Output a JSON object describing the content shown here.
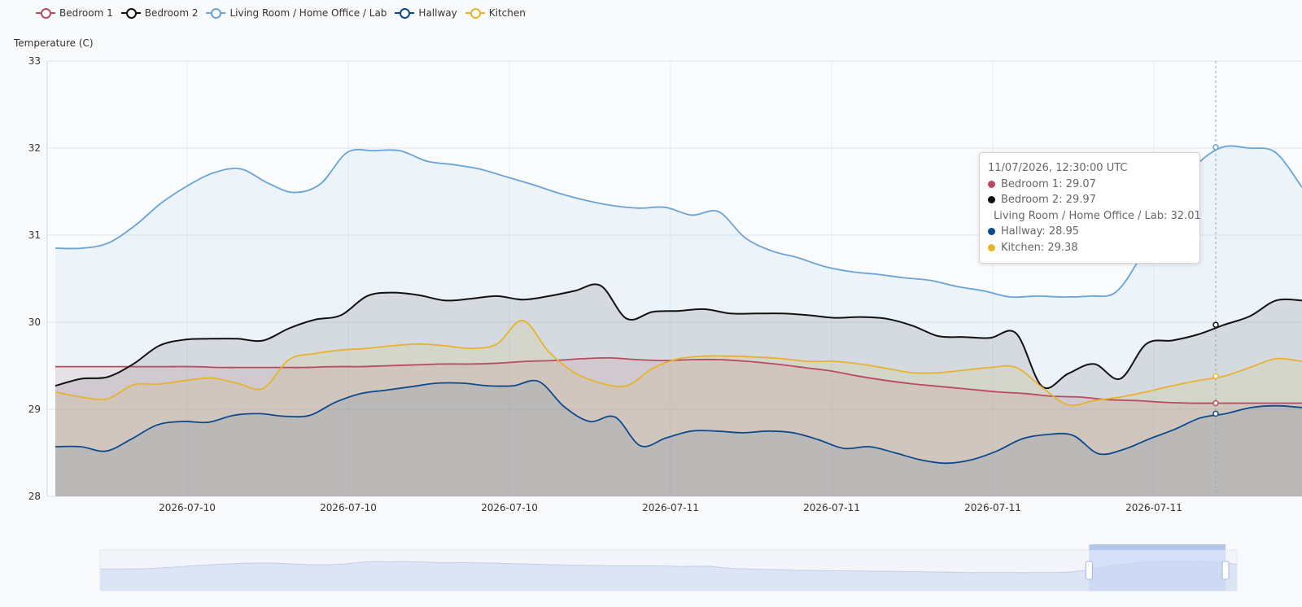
{
  "chart_data": {
    "type": "area",
    "ylabel": "Temperature (C)",
    "ylim": [
      28,
      33
    ],
    "y_ticks": [
      28,
      29,
      30,
      31,
      32,
      33
    ],
    "x_tick_labels": [
      "2026-07-10",
      "2026-07-10",
      "2026-07-10",
      "2026-07-11",
      "2026-07-11",
      "2026-07-11",
      "2026-07-11"
    ],
    "x_range_hours": [
      0,
      38
    ],
    "legend_position": "top-left",
    "grid": true,
    "series": [
      {
        "name": "Bedroom 1",
        "color": "#b94b5f",
        "values": [
          29.49,
          29.49,
          29.49,
          29.49,
          29.49,
          29.49,
          29.48,
          29.48,
          29.48,
          29.48,
          29.49,
          29.49,
          29.5,
          29.51,
          29.52,
          29.52,
          29.53,
          29.55,
          29.56,
          29.58,
          29.59,
          29.57,
          29.56,
          29.57,
          29.57,
          29.55,
          29.52,
          29.48,
          29.44,
          29.38,
          29.33,
          29.29,
          29.26,
          29.23,
          29.2,
          29.18,
          29.15,
          29.14,
          29.11,
          29.1,
          29.08,
          29.07,
          29.07,
          29.07,
          29.07,
          29.07
        ]
      },
      {
        "name": "Bedroom 2",
        "color": "#111111",
        "values": [
          29.27,
          29.35,
          29.37,
          29.52,
          29.73,
          29.8,
          29.81,
          29.81,
          29.79,
          29.93,
          30.03,
          30.08,
          30.3,
          30.34,
          30.31,
          30.25,
          30.27,
          30.3,
          30.26,
          30.3,
          30.36,
          30.42,
          30.04,
          30.12,
          30.13,
          30.15,
          30.1,
          30.1,
          30.1,
          30.08,
          30.05,
          30.06,
          30.04,
          29.96,
          29.84,
          29.83,
          29.82,
          29.87,
          29.26,
          29.41,
          29.52,
          29.35,
          29.75,
          29.79,
          29.86,
          29.97,
          30.07,
          30.25,
          30.25
        ]
      },
      {
        "name": "Living Room / Home Office / Lab",
        "color": "#6aa3d5",
        "values": [
          30.85,
          30.85,
          30.91,
          31.11,
          31.37,
          31.57,
          31.72,
          31.76,
          31.6,
          31.49,
          31.59,
          31.95,
          31.97,
          31.97,
          31.85,
          31.81,
          31.76,
          31.67,
          31.58,
          31.48,
          31.4,
          31.34,
          31.31,
          31.32,
          31.23,
          31.27,
          30.97,
          30.82,
          30.74,
          30.64,
          30.58,
          30.55,
          30.51,
          30.48,
          30.41,
          30.36,
          30.29,
          30.3,
          30.29,
          30.3,
          30.35,
          30.8,
          31.4,
          31.8,
          32.01,
          32.0,
          31.95,
          31.55
        ]
      },
      {
        "name": "Hallway",
        "color": "#0d4a8c",
        "values": [
          28.57,
          28.57,
          28.52,
          28.66,
          28.82,
          28.86,
          28.85,
          28.93,
          28.95,
          28.92,
          28.93,
          29.08,
          29.18,
          29.22,
          29.26,
          29.3,
          29.3,
          29.27,
          29.27,
          29.32,
          29.03,
          28.86,
          28.91,
          28.58,
          28.67,
          28.75,
          28.75,
          28.73,
          28.75,
          28.73,
          28.65,
          28.55,
          28.57,
          28.5,
          28.42,
          28.38,
          28.42,
          28.52,
          28.66,
          28.71,
          28.7,
          28.49,
          28.54,
          28.66,
          28.77,
          28.9,
          28.95,
          29.02,
          29.04,
          29.02
        ]
      },
      {
        "name": "Kitchen",
        "color": "#e8b22e",
        "values": [
          29.2,
          29.14,
          29.12,
          29.28,
          29.29,
          29.33,
          29.36,
          29.3,
          29.24,
          29.57,
          29.64,
          29.68,
          29.7,
          29.73,
          29.75,
          29.73,
          29.7,
          29.75,
          30.02,
          29.66,
          29.42,
          29.3,
          29.27,
          29.47,
          29.58,
          29.61,
          29.61,
          29.6,
          29.58,
          29.55,
          29.55,
          29.52,
          29.47,
          29.42,
          29.42,
          29.45,
          29.48,
          29.48,
          29.25,
          29.05,
          29.1,
          29.14,
          29.2,
          29.27,
          29.33,
          29.38,
          29.48,
          29.58,
          29.55
        ]
      }
    ]
  },
  "tooltip": {
    "time": "11/07/2026, 12:30:00 UTC",
    "rows": [
      {
        "label": "Bedroom 1: 29.07",
        "color": "#b94b5f"
      },
      {
        "label": "Bedroom 2: 29.97",
        "color": "#111111"
      },
      {
        "label": "Living Room / Home Office / Lab: 32.01",
        "color": "#6aa3d5"
      },
      {
        "label": "Hallway: 28.95",
        "color": "#0d4a8c"
      },
      {
        "label": "Kitchen: 29.38",
        "color": "#e8b22e"
      }
    ]
  },
  "data_zoom": {
    "start_fraction": 0.87,
    "end_fraction": 0.99
  }
}
